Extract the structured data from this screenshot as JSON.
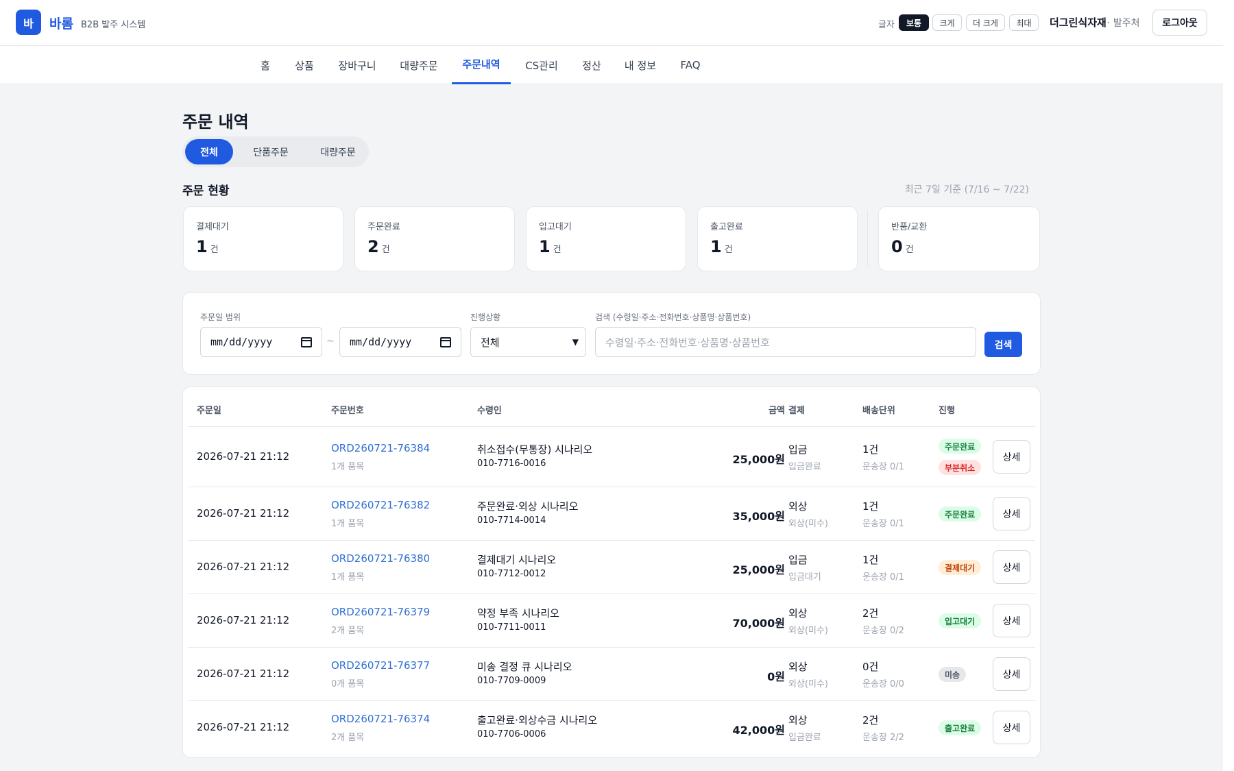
{
  "header": {
    "logo_letter": "바",
    "brand_name": "바롬",
    "brand_sub": "B2B 발주 시스템",
    "font_size_label": "글자",
    "font_sizes": [
      "보통",
      "크게",
      "더 크게",
      "최대"
    ],
    "font_size_active": "보통",
    "user_name": "더그린식자재",
    "user_role": "· 발주처",
    "logout_label": "로그아웃"
  },
  "nav": {
    "items": [
      "홈",
      "상품",
      "장바구니",
      "대량주문",
      "주문내역",
      "CS관리",
      "정산",
      "내 정보",
      "FAQ"
    ],
    "active": "주문내역"
  },
  "main": {
    "title": "주문 내역",
    "segments": [
      "전체",
      "단품주문",
      "대량주문"
    ],
    "segment_active": "전체",
    "status_title": "주문 현황",
    "status_period": "최근 7일 기준 (7/16 ~ 7/22)",
    "stats": [
      {
        "label": "결제대기",
        "value": "1",
        "unit": "건"
      },
      {
        "label": "주문완료",
        "value": "2",
        "unit": "건"
      },
      {
        "label": "입고대기",
        "value": "1",
        "unit": "건"
      },
      {
        "label": "출고완료",
        "value": "1",
        "unit": "건"
      },
      {
        "label": "반품/교환",
        "value": "0",
        "unit": "건"
      }
    ]
  },
  "filters": {
    "date_range_label": "주문일 범위",
    "date_from_placeholder": "mm/dd/yyyy",
    "date_to_placeholder": "mm/dd/yyyy",
    "date_separator": "~",
    "status_label": "진행상황",
    "status_value": "전체",
    "search_label": "검색 (수령일·주소·전화번호·상품명·상품번호)",
    "search_placeholder": "수령일·주소·전화번호·상품명·상품번호",
    "search_button": "검색"
  },
  "table": {
    "headers": [
      "주문일",
      "주문번호",
      "수령인",
      "금액",
      "결제",
      "배송단위",
      "진행"
    ],
    "detail_label": "상세",
    "rows": [
      {
        "date": "2026-07-21 21:12",
        "order_no": "ORD260721-76384",
        "items": "1개 품목",
        "recipient": "취소접수(무통장) 시나리오",
        "phone": "010-7716-0016",
        "amount": "25,000원",
        "pay": "입금",
        "pay_status": "입금완료",
        "unit": "1건",
        "tracking": "운송장 0/1",
        "badges": [
          {
            "text": "주문완료",
            "color": "#15803d",
            "bg": "#dcfce7"
          },
          {
            "text": "부분취소",
            "color": "#dc2626",
            "bg": "#fee2e2"
          }
        ]
      },
      {
        "date": "2026-07-21 21:12",
        "order_no": "ORD260721-76382",
        "items": "1개 품목",
        "recipient": "주문완료·외상 시나리오",
        "phone": "010-7714-0014",
        "amount": "35,000원",
        "pay": "외상",
        "pay_status": "외상(미수)",
        "unit": "1건",
        "tracking": "운송장 0/1",
        "badges": [
          {
            "text": "주문완료",
            "color": "#15803d",
            "bg": "#dcfce7"
          }
        ]
      },
      {
        "date": "2026-07-21 21:12",
        "order_no": "ORD260721-76380",
        "items": "1개 품목",
        "recipient": "결제대기 시나리오",
        "phone": "010-7712-0012",
        "amount": "25,000원",
        "pay": "입금",
        "pay_status": "입금대기",
        "unit": "1건",
        "tracking": "운송장 0/1",
        "badges": [
          {
            "text": "결제대기",
            "color": "#c2410c",
            "bg": "#ffedd5"
          }
        ]
      },
      {
        "date": "2026-07-21 21:12",
        "order_no": "ORD260721-76379",
        "items": "2개 품목",
        "recipient": "약정 부족 시나리오",
        "phone": "010-7711-0011",
        "amount": "70,000원",
        "pay": "외상",
        "pay_status": "외상(미수)",
        "unit": "2건",
        "tracking": "운송장 0/2",
        "badges": [
          {
            "text": "입고대기",
            "color": "#15803d",
            "bg": "#dcfce7"
          }
        ]
      },
      {
        "date": "2026-07-21 21:12",
        "order_no": "ORD260721-76377",
        "items": "0개 품목",
        "recipient": "미송 결정 큐 시나리오",
        "phone": "010-7709-0009",
        "amount": "0원",
        "pay": "외상",
        "pay_status": "외상(미수)",
        "unit": "0건",
        "tracking": "운송장 0/0",
        "badges": [
          {
            "text": "미송",
            "color": "#4b5563",
            "bg": "#e5e7eb"
          }
        ]
      },
      {
        "date": "2026-07-21 21:12",
        "order_no": "ORD260721-76374",
        "items": "2개 품목",
        "recipient": "출고완료·외상수금 시나리오",
        "phone": "010-7706-0006",
        "amount": "42,000원",
        "pay": "외상",
        "pay_status": "입금완료",
        "unit": "2건",
        "tracking": "운송장 2/2",
        "badges": [
          {
            "text": "출고완료",
            "color": "#15803d",
            "bg": "#dcfce7"
          }
        ]
      }
    ]
  }
}
